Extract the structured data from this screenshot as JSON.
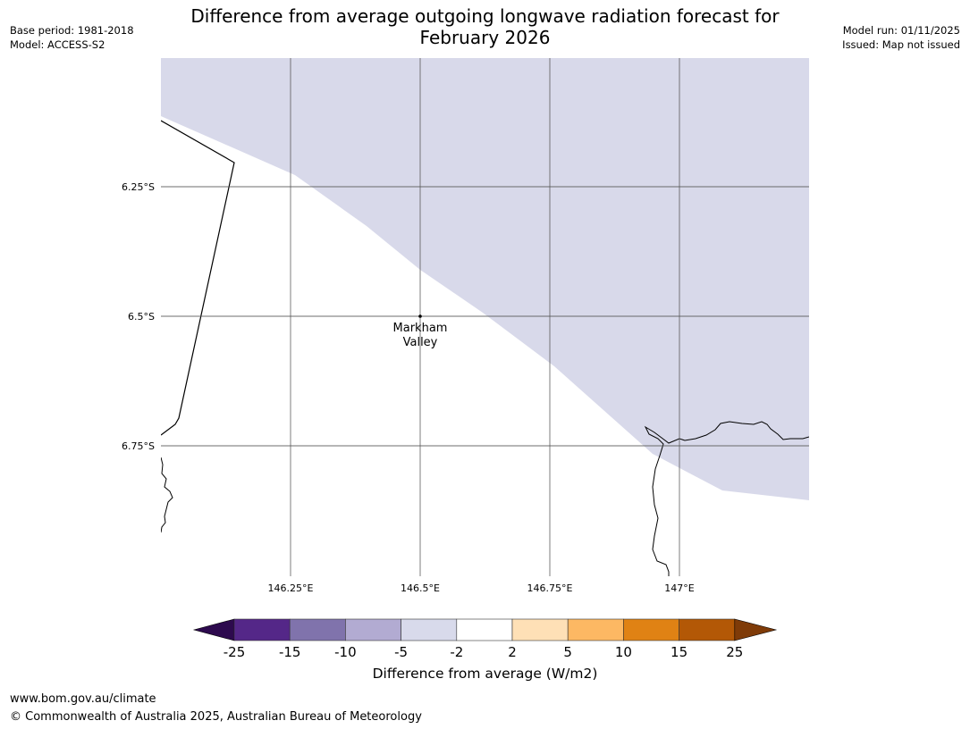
{
  "header": {
    "title_line1": "Difference from average outgoing longwave radiation forecast for",
    "title_line2": "February 2026",
    "base_period": "Base period: 1981-2018",
    "model": "Model: ACCESS-S2",
    "model_run": "Model run: 01/11/2025",
    "issued": "Issued: Map not issued"
  },
  "map": {
    "lat_labels": [
      "6.25°S",
      "6.5°S",
      "6.75°S"
    ],
    "lon_labels": [
      "146.25°E",
      "146.5°E",
      "146.75°E",
      "147°E"
    ],
    "place": {
      "name_line1": "Markham",
      "name_line2": "Valley",
      "lon": 146.5,
      "lat": -6.5
    },
    "shaded_category": "-5 to -2",
    "colors": {
      "shade": "#d8d9ea",
      "grid": "#555555",
      "coast": "#000000"
    }
  },
  "colorbar": {
    "label": "Difference from average (W/m2)",
    "ticks": [
      "-25",
      "-15",
      "-10",
      "-5",
      "-2",
      "2",
      "5",
      "10",
      "15",
      "25"
    ],
    "low_extend_color": "#2d0a4e",
    "high_extend_color": "#7f3b08",
    "colors": [
      "#542788",
      "#8073ac",
      "#b2abd2",
      "#d8daeb",
      "#ffffff",
      "#fee0b6",
      "#fdb863",
      "#e08214",
      "#b35806"
    ]
  },
  "footer": {
    "url": "www.bom.gov.au/climate",
    "copyright": "© Commonwealth of Australia 2025, Australian Bureau of Meteorology"
  }
}
